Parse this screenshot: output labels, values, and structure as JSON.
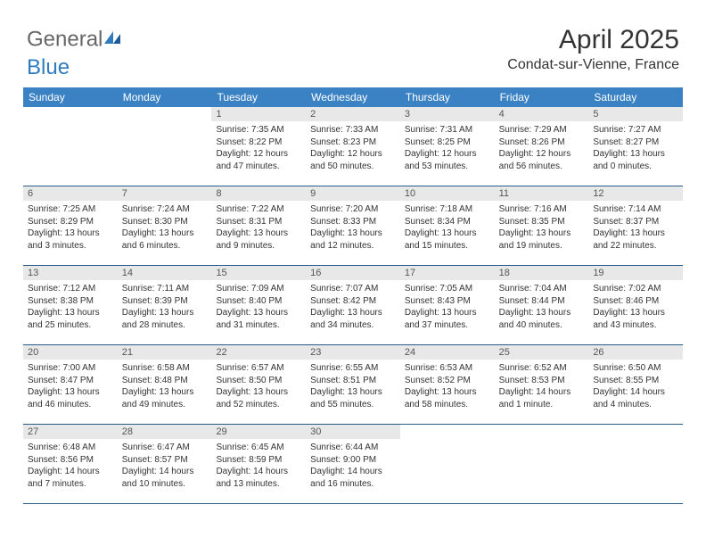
{
  "brand": {
    "part1": "General",
    "part2": "Blue"
  },
  "title": "April 2025",
  "location": "Condat-sur-Vienne, France",
  "header_bg": "#3b82c4",
  "day_names": [
    "Sunday",
    "Monday",
    "Tuesday",
    "Wednesday",
    "Thursday",
    "Friday",
    "Saturday"
  ],
  "weeks": [
    [
      {
        "empty": true
      },
      {
        "empty": true
      },
      {
        "date": "1",
        "sunrise": "Sunrise: 7:35 AM",
        "sunset": "Sunset: 8:22 PM",
        "daylight": "Daylight: 12 hours and 47 minutes."
      },
      {
        "date": "2",
        "sunrise": "Sunrise: 7:33 AM",
        "sunset": "Sunset: 8:23 PM",
        "daylight": "Daylight: 12 hours and 50 minutes."
      },
      {
        "date": "3",
        "sunrise": "Sunrise: 7:31 AM",
        "sunset": "Sunset: 8:25 PM",
        "daylight": "Daylight: 12 hours and 53 minutes."
      },
      {
        "date": "4",
        "sunrise": "Sunrise: 7:29 AM",
        "sunset": "Sunset: 8:26 PM",
        "daylight": "Daylight: 12 hours and 56 minutes."
      },
      {
        "date": "5",
        "sunrise": "Sunrise: 7:27 AM",
        "sunset": "Sunset: 8:27 PM",
        "daylight": "Daylight: 13 hours and 0 minutes."
      }
    ],
    [
      {
        "date": "6",
        "sunrise": "Sunrise: 7:25 AM",
        "sunset": "Sunset: 8:29 PM",
        "daylight": "Daylight: 13 hours and 3 minutes."
      },
      {
        "date": "7",
        "sunrise": "Sunrise: 7:24 AM",
        "sunset": "Sunset: 8:30 PM",
        "daylight": "Daylight: 13 hours and 6 minutes."
      },
      {
        "date": "8",
        "sunrise": "Sunrise: 7:22 AM",
        "sunset": "Sunset: 8:31 PM",
        "daylight": "Daylight: 13 hours and 9 minutes."
      },
      {
        "date": "9",
        "sunrise": "Sunrise: 7:20 AM",
        "sunset": "Sunset: 8:33 PM",
        "daylight": "Daylight: 13 hours and 12 minutes."
      },
      {
        "date": "10",
        "sunrise": "Sunrise: 7:18 AM",
        "sunset": "Sunset: 8:34 PM",
        "daylight": "Daylight: 13 hours and 15 minutes."
      },
      {
        "date": "11",
        "sunrise": "Sunrise: 7:16 AM",
        "sunset": "Sunset: 8:35 PM",
        "daylight": "Daylight: 13 hours and 19 minutes."
      },
      {
        "date": "12",
        "sunrise": "Sunrise: 7:14 AM",
        "sunset": "Sunset: 8:37 PM",
        "daylight": "Daylight: 13 hours and 22 minutes."
      }
    ],
    [
      {
        "date": "13",
        "sunrise": "Sunrise: 7:12 AM",
        "sunset": "Sunset: 8:38 PM",
        "daylight": "Daylight: 13 hours and 25 minutes."
      },
      {
        "date": "14",
        "sunrise": "Sunrise: 7:11 AM",
        "sunset": "Sunset: 8:39 PM",
        "daylight": "Daylight: 13 hours and 28 minutes."
      },
      {
        "date": "15",
        "sunrise": "Sunrise: 7:09 AM",
        "sunset": "Sunset: 8:40 PM",
        "daylight": "Daylight: 13 hours and 31 minutes."
      },
      {
        "date": "16",
        "sunrise": "Sunrise: 7:07 AM",
        "sunset": "Sunset: 8:42 PM",
        "daylight": "Daylight: 13 hours and 34 minutes."
      },
      {
        "date": "17",
        "sunrise": "Sunrise: 7:05 AM",
        "sunset": "Sunset: 8:43 PM",
        "daylight": "Daylight: 13 hours and 37 minutes."
      },
      {
        "date": "18",
        "sunrise": "Sunrise: 7:04 AM",
        "sunset": "Sunset: 8:44 PM",
        "daylight": "Daylight: 13 hours and 40 minutes."
      },
      {
        "date": "19",
        "sunrise": "Sunrise: 7:02 AM",
        "sunset": "Sunset: 8:46 PM",
        "daylight": "Daylight: 13 hours and 43 minutes."
      }
    ],
    [
      {
        "date": "20",
        "sunrise": "Sunrise: 7:00 AM",
        "sunset": "Sunset: 8:47 PM",
        "daylight": "Daylight: 13 hours and 46 minutes."
      },
      {
        "date": "21",
        "sunrise": "Sunrise: 6:58 AM",
        "sunset": "Sunset: 8:48 PM",
        "daylight": "Daylight: 13 hours and 49 minutes."
      },
      {
        "date": "22",
        "sunrise": "Sunrise: 6:57 AM",
        "sunset": "Sunset: 8:50 PM",
        "daylight": "Daylight: 13 hours and 52 minutes."
      },
      {
        "date": "23",
        "sunrise": "Sunrise: 6:55 AM",
        "sunset": "Sunset: 8:51 PM",
        "daylight": "Daylight: 13 hours and 55 minutes."
      },
      {
        "date": "24",
        "sunrise": "Sunrise: 6:53 AM",
        "sunset": "Sunset: 8:52 PM",
        "daylight": "Daylight: 13 hours and 58 minutes."
      },
      {
        "date": "25",
        "sunrise": "Sunrise: 6:52 AM",
        "sunset": "Sunset: 8:53 PM",
        "daylight": "Daylight: 14 hours and 1 minute."
      },
      {
        "date": "26",
        "sunrise": "Sunrise: 6:50 AM",
        "sunset": "Sunset: 8:55 PM",
        "daylight": "Daylight: 14 hours and 4 minutes."
      }
    ],
    [
      {
        "date": "27",
        "sunrise": "Sunrise: 6:48 AM",
        "sunset": "Sunset: 8:56 PM",
        "daylight": "Daylight: 14 hours and 7 minutes."
      },
      {
        "date": "28",
        "sunrise": "Sunrise: 6:47 AM",
        "sunset": "Sunset: 8:57 PM",
        "daylight": "Daylight: 14 hours and 10 minutes."
      },
      {
        "date": "29",
        "sunrise": "Sunrise: 6:45 AM",
        "sunset": "Sunset: 8:59 PM",
        "daylight": "Daylight: 14 hours and 13 minutes."
      },
      {
        "date": "30",
        "sunrise": "Sunrise: 6:44 AM",
        "sunset": "Sunset: 9:00 PM",
        "daylight": "Daylight: 14 hours and 16 minutes."
      },
      {
        "empty": true
      },
      {
        "empty": true
      },
      {
        "empty": true
      }
    ]
  ]
}
